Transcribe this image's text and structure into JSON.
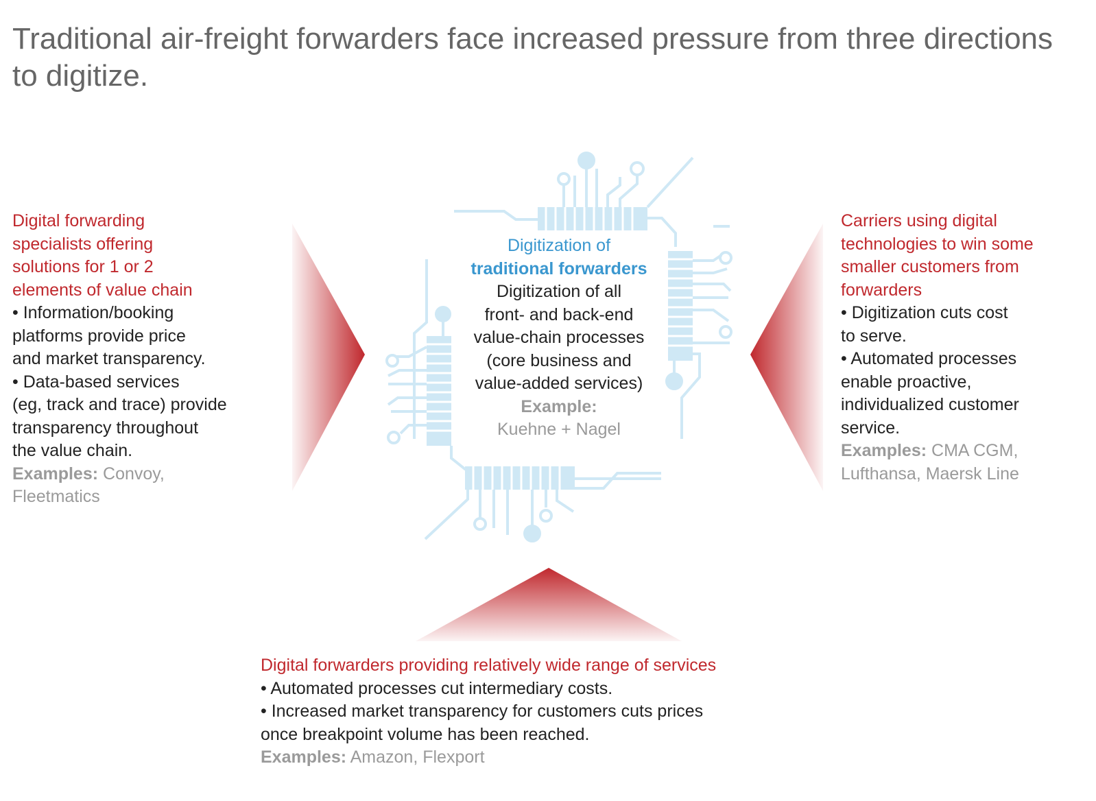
{
  "title": "Traditional air-freight forwarders face increased pressure from three directions to digitize.",
  "colors": {
    "accent_red": "#c0282d",
    "circuit_blue": "#cfe8f5",
    "heading_blue": "#3a97cf",
    "title_gray": "#666666",
    "example_gray": "#9a9a9a"
  },
  "left": {
    "heading": [
      "Digital forwarding",
      "specialists offering",
      "solutions for 1 or 2",
      "elements of value chain"
    ],
    "bullets": [
      [
        "• Information/booking",
        "platforms provide price",
        "and market transparency."
      ],
      [
        "• Data-based services",
        "(eg, track and trace) provide",
        "transparency throughout",
        "the value chain."
      ]
    ],
    "examples_label": "Examples:",
    "examples_lines": [
      " Convoy,",
      "Fleetmatics"
    ]
  },
  "right": {
    "heading": [
      "Carriers using digital",
      "technologies to win some",
      "smaller customers from",
      "forwarders"
    ],
    "bullets": [
      [
        "• Digitization cuts cost",
        "to serve."
      ],
      [
        "• Automated processes",
        "enable proactive,",
        "individualized customer",
        "service."
      ]
    ],
    "examples_label": "Examples:",
    "examples_lines": [
      " CMA CGM,",
      "Lufthansa, Maersk Line"
    ]
  },
  "center": {
    "heading": [
      "Digitization of",
      "traditional forwarders"
    ],
    "body": [
      "Digitization of all",
      "front- and back-end",
      "value-chain processes",
      "(core business and",
      "value-added services)"
    ],
    "examples_label": "Example:",
    "example": "Kuehne + Nagel"
  },
  "bottom": {
    "heading": "Digital forwarders providing relatively wide range of services",
    "bullets": [
      [
        "• Automated processes cut intermediary costs."
      ],
      [
        "• Increased market transparency for customers cuts prices",
        "once breakpoint volume has been reached."
      ]
    ],
    "examples_label": "Examples:",
    "examples": " Amazon, Flexport"
  },
  "icons": {
    "left_arrow": "triangle-right-icon",
    "right_arrow": "triangle-left-icon",
    "bottom_arrow": "triangle-up-icon",
    "chip": "circuit-chip-icon"
  }
}
